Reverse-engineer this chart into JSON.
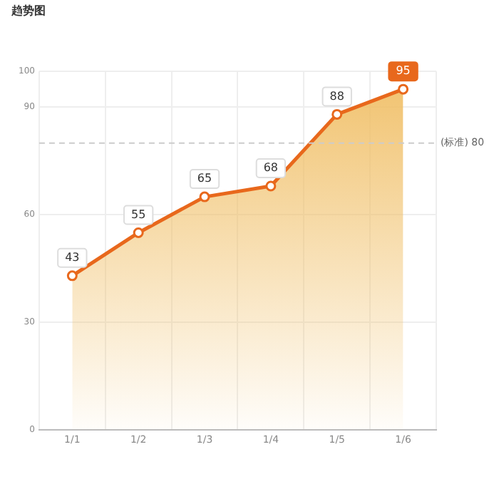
{
  "chart_data": {
    "type": "area",
    "title": "趋势图",
    "categories": [
      "1/1",
      "1/2",
      "1/3",
      "1/4",
      "1/5",
      "1/6"
    ],
    "series": [
      {
        "color": "#e8681c",
        "values": [
          43,
          55,
          65,
          68,
          88,
          95
        ]
      }
    ],
    "ylim": [
      0,
      100
    ],
    "yticks": [
      0,
      30,
      60,
      90,
      100
    ],
    "grid": true,
    "legend": false,
    "marker": "circle",
    "data_labels": true,
    "ref_lines": [
      {
        "axis": "y",
        "value": 80,
        "label": "(标准) 80",
        "color": "#cccccc",
        "line_style": "dashed"
      }
    ]
  }
}
